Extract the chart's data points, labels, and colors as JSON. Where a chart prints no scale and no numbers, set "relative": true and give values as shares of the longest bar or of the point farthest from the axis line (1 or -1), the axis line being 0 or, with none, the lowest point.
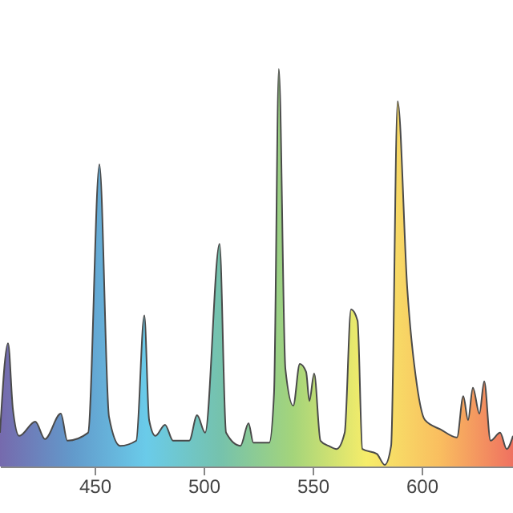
{
  "chart_data": {
    "type": "area",
    "relative": true,
    "xlim": [
      406.6,
      641.9
    ],
    "xticks": [
      450,
      500,
      550,
      600
    ],
    "colors": [
      "#3b2a8a",
      "#1f6fb5",
      "#2ab5e0",
      "#3aa88a",
      "#7dc242",
      "#f2e52a",
      "#f7a21b",
      "#e8341c"
    ],
    "series": [
      {
        "x": [
          406.6,
          410.3,
          412.5,
          415.4,
          422.8,
          427.2,
          434.5,
          437.5,
          447.0,
          452.2,
          456.6,
          461.7,
          469.1,
          472.8,
          475.0,
          477.9,
          482.3,
          486.0,
          493.4,
          497.0,
          500.7,
          507.3,
          510.3,
          516.9,
          520.6,
          522.8,
          530.1,
          532.3,
          534.5,
          537.5,
          541.1,
          544.1,
          547.0,
          548.5,
          550.7,
          553.6,
          557.3,
          561.0,
          564.7,
          567.6,
          570.6,
          572.8,
          579.4,
          583.1,
          586.0,
          589.0,
          593.4,
          597.8,
          601.5,
          608.8,
          616.2,
          619.1,
          621.3,
          623.5,
          626.5,
          628.7,
          631.6,
          636.0,
          639.0,
          641.9
        ],
        "values": [
          0.085,
          0.31,
          0.145,
          0.077,
          0.113,
          0.069,
          0.133,
          0.065,
          0.085,
          0.76,
          0.125,
          0.052,
          0.065,
          0.38,
          0.117,
          0.077,
          0.105,
          0.065,
          0.065,
          0.129,
          0.085,
          0.56,
          0.085,
          0.052,
          0.109,
          0.06,
          0.06,
          0.185,
          1,
          0.246,
          0.153,
          0.258,
          0.238,
          0.165,
          0.234,
          0.065,
          0.052,
          0.044,
          0.085,
          0.395,
          0.367,
          0.044,
          0.032,
          0.004,
          0.052,
          0.919,
          0.448,
          0.206,
          0.117,
          0.093,
          0.073,
          0.177,
          0.117,
          0.198,
          0.133,
          0.214,
          0.065,
          0.085,
          0.044,
          0.077
        ]
      }
    ]
  }
}
